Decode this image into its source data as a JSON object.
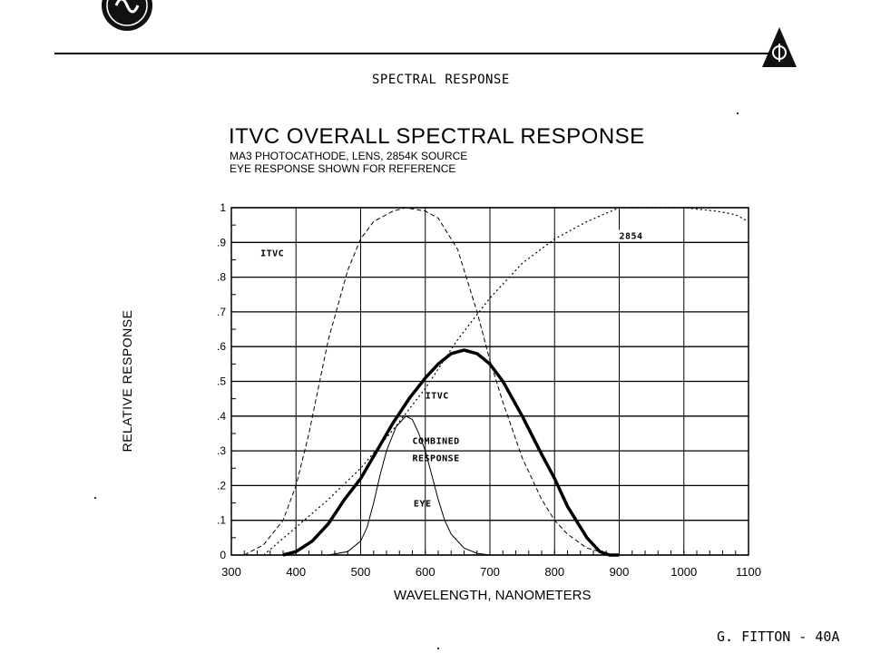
{
  "header": {
    "page_heading": "SPECTRAL RESPONSE"
  },
  "footer": {
    "text": "G. FITTON - 40A"
  },
  "chart_data": {
    "type": "line",
    "title": "ITVC OVERALL SPECTRAL RESPONSE",
    "subtitle_lines": [
      "MA3 PHOTOCATHODE, LENS, 2854K SOURCE",
      "EYE RESPONSE SHOWN FOR REFERENCE"
    ],
    "xlabel": "WAVELENGTH, NANOMETERS",
    "ylabel": "RELATIVE RESPONSE",
    "xlim": [
      300,
      1100
    ],
    "ylim": [
      0,
      1
    ],
    "x_ticks": [
      "300",
      "400",
      "500",
      "600",
      "700",
      "800",
      "900",
      "1000",
      "1100"
    ],
    "y_ticks": [
      "0",
      ".1",
      ".2",
      ".3",
      ".4",
      ".5",
      ".6",
      ".7",
      ".8",
      ".9",
      "1"
    ],
    "grid": true,
    "annotations": [
      {
        "text": "ITVC",
        "x": 345,
        "y": 0.86
      },
      {
        "text": "2854",
        "x": 900,
        "y": 0.91
      },
      {
        "text": "ITVC",
        "x": 600,
        "y": 0.45
      },
      {
        "text": "COMBINED",
        "x": 580,
        "y": 0.32
      },
      {
        "text": "RESPONSE",
        "x": 580,
        "y": 0.27
      },
      {
        "text": "EYE",
        "x": 582,
        "y": 0.14
      }
    ],
    "series": [
      {
        "name": "ITVC",
        "style": "dashed",
        "x": [
          320,
          350,
          380,
          400,
          420,
          450,
          480,
          500,
          520,
          550,
          570,
          600,
          620,
          650,
          680,
          700,
          720,
          750,
          780,
          800,
          820,
          850,
          870,
          890,
          900
        ],
        "y": [
          0.0,
          0.03,
          0.1,
          0.2,
          0.35,
          0.62,
          0.82,
          0.91,
          0.96,
          0.99,
          1.0,
          0.99,
          0.97,
          0.88,
          0.7,
          0.56,
          0.44,
          0.28,
          0.16,
          0.1,
          0.06,
          0.02,
          0.01,
          0.0,
          0.0
        ]
      },
      {
        "name": "2854",
        "style": "dotted",
        "x": [
          350,
          400,
          450,
          500,
          550,
          600,
          650,
          700,
          750,
          800,
          850,
          900,
          950,
          1000,
          1050,
          1080,
          1100
        ],
        "y": [
          0.0,
          0.08,
          0.16,
          0.25,
          0.36,
          0.48,
          0.62,
          0.74,
          0.84,
          0.91,
          0.96,
          1.0,
          1.0,
          1.0,
          0.99,
          0.98,
          0.96
        ]
      },
      {
        "name": "COMBINED RESPONSE",
        "style": "thick",
        "x": [
          380,
          400,
          425,
          450,
          475,
          500,
          525,
          550,
          575,
          600,
          620,
          640,
          660,
          680,
          700,
          720,
          750,
          780,
          800,
          820,
          850,
          870,
          885,
          900
        ],
        "y": [
          0.0,
          0.01,
          0.04,
          0.09,
          0.16,
          0.22,
          0.3,
          0.38,
          0.45,
          0.51,
          0.55,
          0.58,
          0.59,
          0.58,
          0.55,
          0.5,
          0.4,
          0.29,
          0.22,
          0.14,
          0.05,
          0.01,
          0.0,
          0.0
        ]
      },
      {
        "name": "EYE",
        "style": "thin",
        "x": [
          450,
          480,
          500,
          510,
          520,
          530,
          540,
          555,
          570,
          580,
          590,
          600,
          610,
          620,
          630,
          640,
          660,
          680,
          700
        ],
        "y": [
          0.0,
          0.01,
          0.04,
          0.08,
          0.15,
          0.23,
          0.3,
          0.37,
          0.4,
          0.39,
          0.35,
          0.3,
          0.23,
          0.16,
          0.1,
          0.06,
          0.02,
          0.005,
          0.0
        ]
      }
    ]
  },
  "colors": {
    "ink": "#000000",
    "background": "#ffffff"
  }
}
